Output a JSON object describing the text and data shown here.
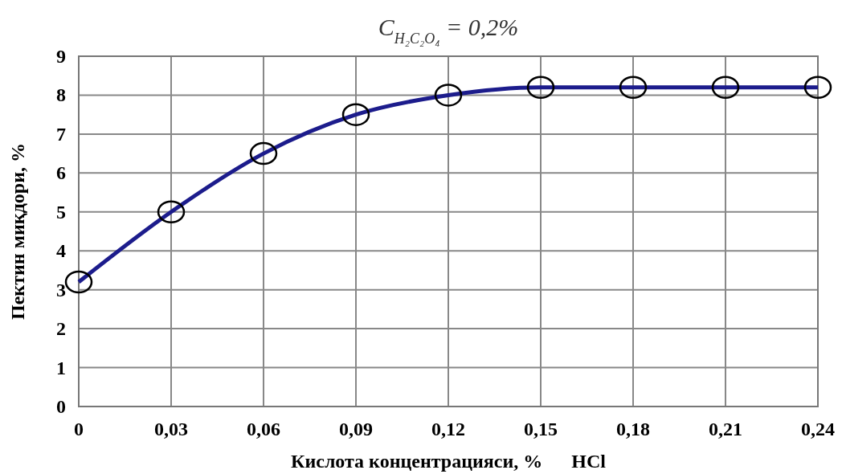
{
  "chart_data": {
    "type": "line",
    "title": "C$_{H₂C₂O₄}$ = 0,2%",
    "xlabel": "Кислота концентрацияси, %      HCl",
    "ylabel": "Пектин миқдори, %",
    "x": [
      0,
      0.03,
      0.06,
      0.09,
      0.12,
      0.15,
      0.18,
      0.21,
      0.24
    ],
    "series": [
      {
        "color": "#1c1c8c",
        "values": [
          3.2,
          5.0,
          6.5,
          7.5,
          8.0,
          8.2,
          8.2,
          8.2,
          8.2
        ]
      }
    ],
    "xlim": [
      0,
      0.24
    ],
    "ylim": [
      0,
      9
    ],
    "xticks": [
      0,
      {
        "value": 0.03,
        "label": "0,03"
      },
      {
        "value": 0.06,
        "label": "0,06"
      },
      {
        "value": 0.09,
        "label": "0,09"
      },
      {
        "value": 0.12,
        "label": "0,12"
      },
      {
        "value": 0.15,
        "label": "0,15"
      },
      {
        "value": 0.18,
        "label": "0,18"
      },
      {
        "value": 0.21,
        "label": "0,21"
      },
      {
        "value": 0.24,
        "label": "0,24"
      }
    ],
    "yticks": [
      0,
      1,
      2,
      3,
      4,
      5,
      6,
      7,
      8,
      9
    ],
    "grid": true,
    "marker": "circle",
    "line_style": "solid"
  }
}
